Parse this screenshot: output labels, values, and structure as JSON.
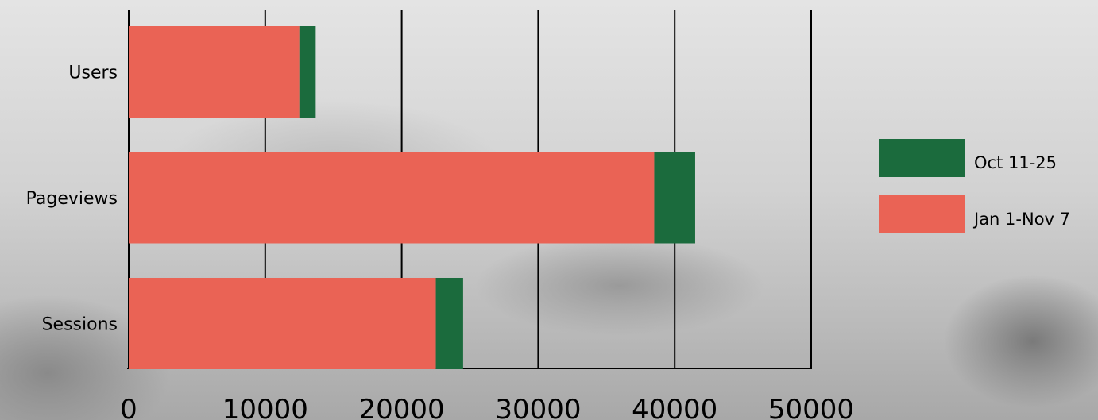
{
  "chart_data": {
    "type": "bar",
    "orientation": "horizontal",
    "stacked": true,
    "categories": [
      "Users",
      "Pageviews",
      "Sessions"
    ],
    "series": [
      {
        "name": "Jan 1-Nov 7",
        "color": "#ea6355",
        "values": [
          12500,
          38500,
          22500
        ]
      },
      {
        "name": "Oct 11-25",
        "color": "#1b6b3d",
        "values": [
          1200,
          3000,
          2000
        ]
      }
    ],
    "xlim": [
      0,
      50000
    ],
    "x_ticks": [
      0,
      10000,
      20000,
      30000,
      40000,
      50000
    ],
    "grid": true,
    "legend_position": "right",
    "title": "",
    "xlabel": "",
    "ylabel": ""
  }
}
